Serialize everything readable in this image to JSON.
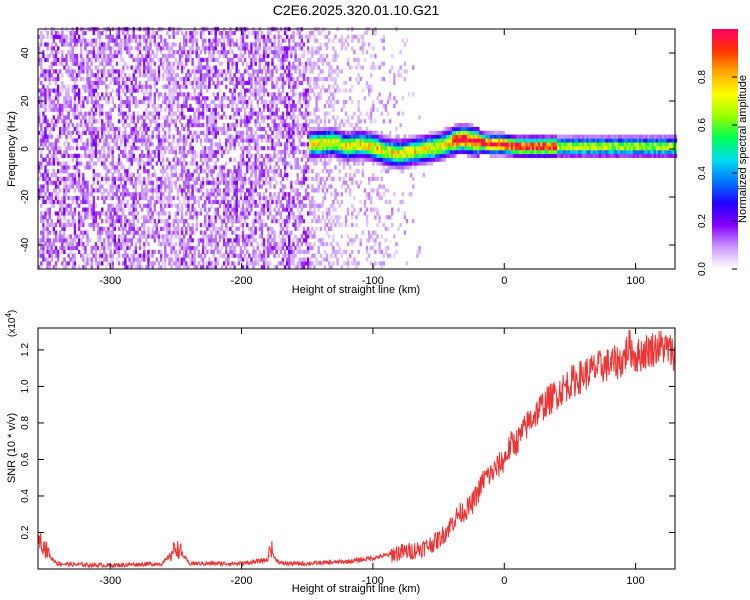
{
  "title": "C2E6.2025.320.01.10.G21",
  "chart_data": [
    {
      "type": "heatmap",
      "xlabel": "Height of straight line (km)",
      "ylabel": "Frequency (Hz)",
      "xlim": [
        -355,
        130
      ],
      "ylim": [
        -50,
        50
      ],
      "x_ticks": [
        -300,
        -200,
        -100,
        0,
        100
      ],
      "x_tick_labels": [
        "-300",
        "-200",
        "-100",
        "0",
        "100"
      ],
      "y_ticks": [
        -40,
        -20,
        0,
        20,
        40
      ],
      "y_tick_labels": [
        "-40",
        "-20",
        "0",
        "20",
        "40"
      ],
      "grid": false,
      "signal_trace": {
        "height_km": [
          -145,
          -130,
          -120,
          -110,
          -100,
          -90,
          -80,
          -70,
          -60,
          -50,
          -40,
          -35,
          -30,
          -20,
          -10,
          0,
          10,
          20,
          40,
          60,
          80,
          100,
          130
        ],
        "frequency_hz": [
          2,
          3,
          1,
          2,
          1,
          -1,
          -2,
          -1,
          0,
          1,
          3,
          4,
          4,
          3,
          2,
          2,
          1,
          1,
          1,
          1,
          1,
          1,
          1
        ]
      },
      "colorbar": {
        "label": "Normalized spectral amplitude",
        "range": [
          0,
          1
        ],
        "ticks": [
          0,
          0.2,
          0.4,
          0.6,
          0.8
        ],
        "tick_labels": [
          "0.0",
          "0.2",
          "0.4",
          "0.6",
          "0.8"
        ],
        "colormap": [
          "#ffffff",
          "#cc99ff",
          "#8800ff",
          "#2200ff",
          "#0077ff",
          "#00ddee",
          "#00ff55",
          "#99ff00",
          "#ffff00",
          "#ffaa00",
          "#ff3300",
          "#ff0066"
        ]
      }
    },
    {
      "type": "line",
      "xlabel": "Height of straight line (km)",
      "ylabel": "SNR (10 * v/v)",
      "y_scale_label": "(x10",
      "y_scale_exponent": "4",
      "y_scale_suffix": ")",
      "xlim": [
        -355,
        130
      ],
      "ylim": [
        0,
        1.32
      ],
      "x_ticks": [
        -300,
        -200,
        -100,
        0,
        100
      ],
      "x_tick_labels": [
        "-300",
        "-200",
        "-100",
        "0",
        "100"
      ],
      "y_ticks": [
        0.2,
        0.4,
        0.6,
        0.8,
        1.0,
        1.2
      ],
      "y_tick_labels": [
        "0.2",
        "0.4",
        "0.6",
        "0.8",
        "1.0",
        "1.2"
      ],
      "grid": false,
      "series": [
        {
          "name": "SNR",
          "color": "#ee3333",
          "x": [
            -355,
            -350,
            -345,
            -340,
            -330,
            -300,
            -260,
            -255,
            -250,
            -245,
            -240,
            -200,
            -180,
            -178,
            -175,
            -170,
            -150,
            -120,
            -100,
            -80,
            -70,
            -60,
            -50,
            -45,
            -40,
            -35,
            -30,
            -25,
            -20,
            -15,
            -10,
            -5,
            0,
            5,
            10,
            15,
            20,
            30,
            40,
            50,
            60,
            70,
            80,
            90,
            95,
            100,
            110,
            120,
            130
          ],
          "y": [
            0.18,
            0.12,
            0.06,
            0.03,
            0.025,
            0.02,
            0.03,
            0.07,
            0.12,
            0.08,
            0.03,
            0.03,
            0.05,
            0.13,
            0.06,
            0.03,
            0.03,
            0.04,
            0.06,
            0.09,
            0.1,
            0.12,
            0.16,
            0.2,
            0.25,
            0.3,
            0.32,
            0.35,
            0.42,
            0.5,
            0.52,
            0.56,
            0.6,
            0.68,
            0.7,
            0.76,
            0.82,
            0.9,
            0.96,
            1.02,
            1.06,
            1.1,
            1.12,
            1.14,
            1.22,
            1.16,
            1.2,
            1.22,
            1.18
          ]
        }
      ]
    }
  ]
}
